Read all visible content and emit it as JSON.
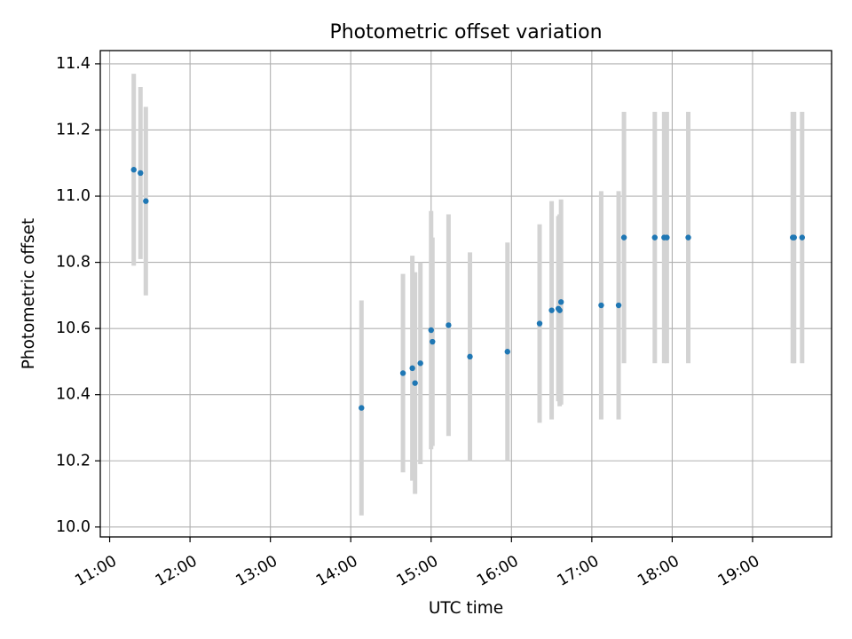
{
  "chart_data": {
    "type": "scatter",
    "title": "Photometric offset variation",
    "xlabel": "UTC time",
    "ylabel": "Photometric offset",
    "xlim": [
      "10:53",
      "19:59"
    ],
    "ylim": [
      9.97,
      11.44
    ],
    "grid": true,
    "x_ticks": [
      "11:00",
      "12:00",
      "13:00",
      "14:00",
      "15:00",
      "16:00",
      "17:00",
      "18:00",
      "19:00"
    ],
    "y_ticks": [
      "10.0",
      "10.2",
      "10.4",
      "10.6",
      "10.8",
      "11.0",
      "11.2",
      "11.4"
    ],
    "colors": {
      "point": "#1f77b4",
      "errorbar": "#d3d3d3",
      "grid": "#b0b0b0",
      "axes": "#000000"
    },
    "points": [
      {
        "t": "11:18",
        "y": 11.08,
        "err": 0.29
      },
      {
        "t": "11:23",
        "y": 11.07,
        "err": 0.26
      },
      {
        "t": "11:27",
        "y": 10.985,
        "err": 0.285
      },
      {
        "t": "14:08",
        "y": 10.36,
        "err": 0.325
      },
      {
        "t": "14:39",
        "y": 10.465,
        "err": 0.3
      },
      {
        "t": "14:46",
        "y": 10.48,
        "err": 0.34
      },
      {
        "t": "14:48",
        "y": 10.435,
        "err": 0.335
      },
      {
        "t": "14:52",
        "y": 10.495,
        "err": 0.305
      },
      {
        "t": "15:00",
        "y": 10.595,
        "err": 0.36
      },
      {
        "t": "15:01",
        "y": 10.56,
        "err": 0.315
      },
      {
        "t": "15:13",
        "y": 10.61,
        "err": 0.335
      },
      {
        "t": "15:29",
        "y": 10.515,
        "err": 0.315
      },
      {
        "t": "15:57",
        "y": 10.53,
        "err": 0.33
      },
      {
        "t": "16:21",
        "y": 10.615,
        "err": 0.3
      },
      {
        "t": "16:30",
        "y": 10.655,
        "err": 0.33
      },
      {
        "t": "16:35",
        "y": 10.66,
        "err": 0.28
      },
      {
        "t": "16:36",
        "y": 10.655,
        "err": 0.29
      },
      {
        "t": "16:37",
        "y": 10.68,
        "err": 0.31
      },
      {
        "t": "17:07",
        "y": 10.67,
        "err": 0.345
      },
      {
        "t": "17:20",
        "y": 10.67,
        "err": 0.345
      },
      {
        "t": "17:24",
        "y": 10.875,
        "err": 0.38
      },
      {
        "t": "17:47",
        "y": 10.875,
        "err": 0.38
      },
      {
        "t": "17:54",
        "y": 10.875,
        "err": 0.38
      },
      {
        "t": "17:56",
        "y": 10.875,
        "err": 0.38
      },
      {
        "t": "18:12",
        "y": 10.875,
        "err": 0.38
      },
      {
        "t": "19:30",
        "y": 10.875,
        "err": 0.38
      },
      {
        "t": "19:31",
        "y": 10.875,
        "err": 0.38
      },
      {
        "t": "19:37",
        "y": 10.875,
        "err": 0.38
      }
    ]
  }
}
